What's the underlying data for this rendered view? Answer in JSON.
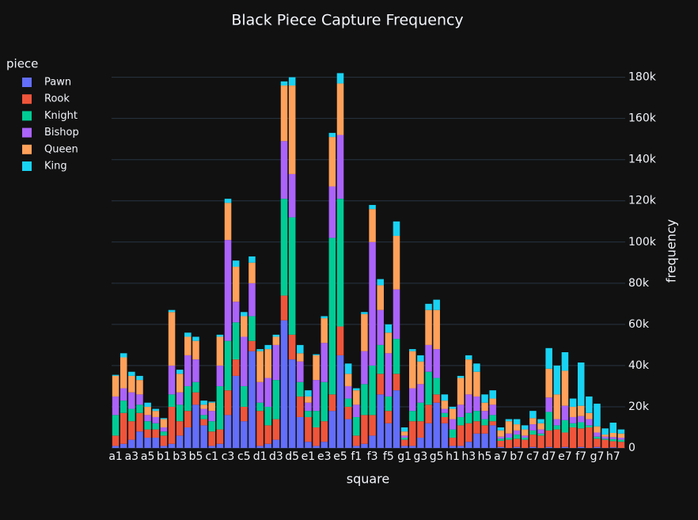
{
  "chart_data": {
    "type": "stacked_bar",
    "title": "Black Piece Capture Frequency",
    "x_label": "square",
    "y_label": "frequency",
    "legend_title": "piece",
    "legend_position": "left",
    "y_axis_side": "right",
    "grid": true,
    "categories": [
      "a1",
      null,
      "a3",
      null,
      "a5",
      null,
      "b1",
      null,
      "b3",
      null,
      "b5",
      null,
      "c1",
      null,
      "c3",
      null,
      "c5",
      null,
      "d1",
      null,
      "d3",
      null,
      "d5",
      null,
      "e1",
      null,
      "e3",
      null,
      "e5",
      null,
      "f1",
      null,
      "f3",
      null,
      "f5",
      null,
      "g1",
      null,
      "g3",
      null,
      "g5",
      null,
      "h1",
      null,
      "h3",
      null,
      "h5",
      null,
      "a7",
      null,
      "b7",
      null,
      "c7",
      null,
      "d7",
      null,
      "e7",
      null,
      "f7",
      null,
      "g7",
      null,
      "h7",
      null
    ],
    "ylim": [
      0,
      191000
    ],
    "yticks": [
      0,
      {
        "value": 20000,
        "label": "20k"
      },
      {
        "value": 40000,
        "label": "40k"
      },
      {
        "value": 60000,
        "label": "60k"
      },
      {
        "value": 80000,
        "label": "80k"
      },
      {
        "value": 100000,
        "label": "100k"
      },
      {
        "value": 120000,
        "label": "120k"
      },
      {
        "value": 140000,
        "label": "140k"
      },
      {
        "value": 160000,
        "label": "160k"
      },
      {
        "value": 180000,
        "label": "180k"
      }
    ],
    "series": [
      {
        "name": "Pawn",
        "color": "#636efa",
        "values": [
          1000,
          2000,
          4000,
          8000,
          5000,
          5000,
          1000,
          2000,
          6000,
          10000,
          21000,
          11000,
          1000,
          2000,
          16000,
          35000,
          13000,
          47000,
          1000,
          2000,
          4000,
          62000,
          43000,
          15000,
          3000,
          1000,
          3000,
          18000,
          45000,
          14000,
          1000,
          2000,
          6000,
          26000,
          12000,
          28000,
          1000,
          1000,
          5000,
          12000,
          22000,
          12000,
          1000,
          1000,
          3000,
          7000,
          7000,
          11000,
          500,
          0,
          500,
          0,
          500,
          0,
          500,
          0,
          500,
          0,
          500,
          0,
          500,
          0,
          300,
          0
        ]
      },
      {
        "name": "Rook",
        "color": "#ef553b",
        "values": [
          5000,
          15000,
          9000,
          9000,
          4000,
          4000,
          5000,
          18000,
          7000,
          8000,
          6000,
          3000,
          7000,
          7000,
          12000,
          8000,
          7000,
          5000,
          17000,
          9000,
          10000,
          12000,
          12000,
          10000,
          12000,
          9000,
          10000,
          8000,
          14000,
          6000,
          5000,
          14000,
          10000,
          10000,
          6000,
          8000,
          3000,
          12000,
          8000,
          9000,
          4000,
          3000,
          4000,
          10000,
          9000,
          6000,
          4000,
          2000,
          3000,
          4000,
          4000,
          4000,
          6000,
          6000,
          8000,
          9000,
          7000,
          10000,
          9000,
          10000,
          4000,
          4000,
          3000,
          3000
        ]
      },
      {
        "name": "Knight",
        "color": "#00cc96",
        "values": [
          10000,
          6000,
          6000,
          4000,
          4000,
          3000,
          2000,
          6000,
          8000,
          12000,
          5000,
          2000,
          5000,
          21000,
          24000,
          18000,
          10000,
          12000,
          4000,
          9000,
          19000,
          47000,
          57000,
          7000,
          3000,
          8000,
          19000,
          76000,
          62000,
          4000,
          9000,
          15000,
          24000,
          14000,
          7000,
          17000,
          1000,
          5000,
          9000,
          16000,
          8000,
          2000,
          4000,
          4000,
          5000,
          5000,
          3000,
          3000,
          1000,
          1000,
          2000,
          1000,
          2000,
          1000,
          9000,
          2000,
          6000,
          2000,
          3000,
          1000,
          1000,
          500,
          1000,
          1000
        ]
      },
      {
        "name": "Bishop",
        "color": "#ab63fa",
        "values": [
          9000,
          6000,
          8000,
          5000,
          3000,
          3000,
          2000,
          14000,
          6000,
          15000,
          11000,
          3000,
          5000,
          10000,
          49000,
          10000,
          24000,
          16000,
          10000,
          14000,
          17000,
          28000,
          21000,
          10000,
          4000,
          15000,
          19000,
          25000,
          31000,
          6000,
          6000,
          16000,
          60000,
          17000,
          21000,
          24000,
          1000,
          11000,
          9000,
          13000,
          14000,
          2000,
          5000,
          6000,
          9000,
          7000,
          4000,
          5000,
          1000,
          2000,
          2000,
          1000,
          3000,
          2000,
          7000,
          3000,
          7000,
          3000,
          3000,
          3000,
          2000,
          1000,
          1000,
          1000
        ]
      },
      {
        "name": "Queen",
        "color": "#ffa15a",
        "values": [
          10000,
          15000,
          8000,
          7000,
          4000,
          3000,
          4000,
          26000,
          9000,
          9000,
          9000,
          2000,
          4000,
          14000,
          18000,
          17000,
          10000,
          10000,
          15000,
          14000,
          4000,
          27000,
          43000,
          4000,
          3000,
          12000,
          12000,
          24000,
          25000,
          6000,
          7000,
          18000,
          16000,
          12000,
          10000,
          26000,
          2000,
          18000,
          11000,
          17000,
          19000,
          4000,
          5000,
          13000,
          17000,
          12000,
          4000,
          3000,
          3000,
          6000,
          3000,
          3000,
          3000,
          3000,
          14000,
          12000,
          17000,
          5000,
          5000,
          3000,
          3000,
          1000,
          2000,
          2000
        ]
      },
      {
        "name": "King",
        "color": "#19d3f3",
        "values": [
          500,
          2000,
          2000,
          2000,
          2000,
          1000,
          500,
          1000,
          2000,
          2000,
          2000,
          2000,
          500,
          1000,
          2000,
          3000,
          2000,
          3000,
          1000,
          2000,
          1000,
          2000,
          4000,
          4000,
          3000,
          500,
          1000,
          2000,
          5000,
          5000,
          1000,
          1000,
          2000,
          3000,
          4000,
          7000,
          2000,
          1000,
          3000,
          3000,
          5000,
          3000,
          1000,
          1000,
          2000,
          4000,
          4000,
          4000,
          1500,
          1000,
          2500,
          2000,
          3500,
          2000,
          10000,
          14000,
          9000,
          4000,
          21000,
          8000,
          11000,
          3000,
          5000,
          2000
        ]
      }
    ]
  }
}
